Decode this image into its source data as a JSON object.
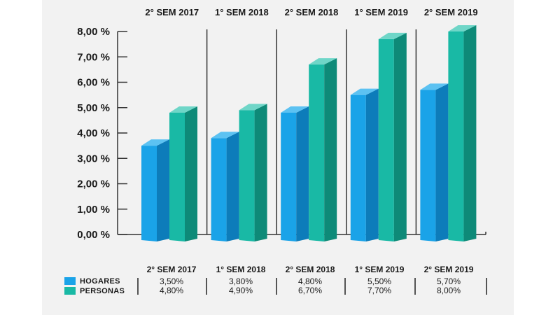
{
  "chart_data": {
    "type": "bar",
    "categories": [
      "2° SEM 2017",
      "1° SEM 2018",
      "2° SEM 2018",
      "1° SEM 2019",
      "2° SEM 2019"
    ],
    "series": [
      {
        "name": "HOGARES",
        "values": [
          3.5,
          3.8,
          4.8,
          5.5,
          5.7
        ],
        "labels": [
          "3,50%",
          "3,80%",
          "4,80%",
          "5,50%",
          "5,70%"
        ]
      },
      {
        "name": "PERSONAS",
        "values": [
          4.8,
          4.9,
          6.7,
          7.7,
          8.0
        ],
        "labels": [
          "4,80%",
          "4,90%",
          "6,70%",
          "7,70%",
          "8,00%"
        ]
      }
    ],
    "yticks": [
      "0,00 %",
      "1,00 %",
      "2,00 %",
      "3,00 %",
      "4,00 %",
      "5,00 %",
      "6,00 %",
      "7,00 %",
      "8,00 %"
    ],
    "ylim": [
      0,
      8
    ],
    "legend_position": "bottom-left",
    "data_table": true
  },
  "colors": {
    "hogares_front": "#1aa3e8",
    "hogares_side": "#0d7cba",
    "hogares_top": "#5cc2f2",
    "personas_front": "#19b9a5",
    "personas_side": "#0e8a78",
    "personas_top": "#6fd6c8",
    "axis": "#333333",
    "panel": "#f2f2f2"
  }
}
